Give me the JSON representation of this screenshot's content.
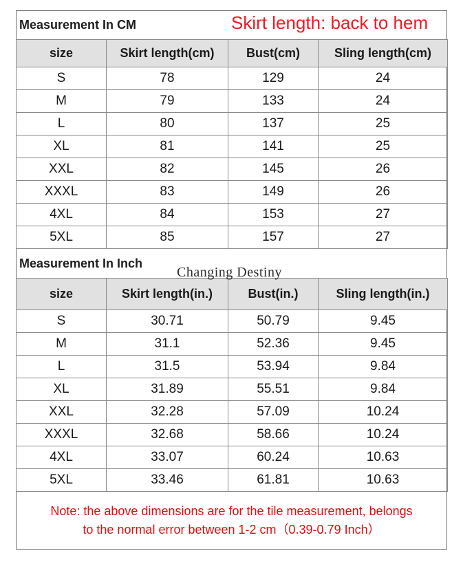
{
  "cm_section": {
    "title": "Measurement In CM",
    "note": "Skirt length: back to hem",
    "headers": [
      "size",
      "Skirt length(cm)",
      "Bust(cm)",
      "Sling length(cm)"
    ],
    "rows": [
      [
        "S",
        "78",
        "129",
        "24"
      ],
      [
        "M",
        "79",
        "133",
        "24"
      ],
      [
        "L",
        "80",
        "137",
        "25"
      ],
      [
        "XL",
        "81",
        "141",
        "25"
      ],
      [
        "XXL",
        "82",
        "145",
        "26"
      ],
      [
        "XXXL",
        "83",
        "149",
        "26"
      ],
      [
        "4XL",
        "84",
        "153",
        "27"
      ],
      [
        "5XL",
        "85",
        "157",
        "27"
      ]
    ]
  },
  "inch_section": {
    "title": "Measurement In Inch",
    "watermark": "Changing Destiny",
    "headers": [
      "size",
      "Skirt length(in.)",
      "Bust(in.)",
      "Sling length(in.)"
    ],
    "rows": [
      [
        "S",
        "30.71",
        "50.79",
        "9.45"
      ],
      [
        "M",
        "31.1",
        "52.36",
        "9.45"
      ],
      [
        "L",
        "31.5",
        "53.94",
        "9.84"
      ],
      [
        "XL",
        "31.89",
        "55.51",
        "9.84"
      ],
      [
        "XXL",
        "32.28",
        "57.09",
        "10.24"
      ],
      [
        "XXXL",
        "32.68",
        "58.66",
        "10.24"
      ],
      [
        "4XL",
        "33.07",
        "60.24",
        "10.63"
      ],
      [
        "5XL",
        "33.46",
        "61.81",
        "10.63"
      ]
    ]
  },
  "footnote": {
    "line1": "Note: the above dimensions are for the tile measurement, belongs",
    "line2": "to the normal error between 1-2 cm（0.39-0.79  Inch）"
  },
  "colors": {
    "accent_red": "#ec1c24",
    "header_bg": "#e1e1e1",
    "border": "#8a8a8a"
  }
}
